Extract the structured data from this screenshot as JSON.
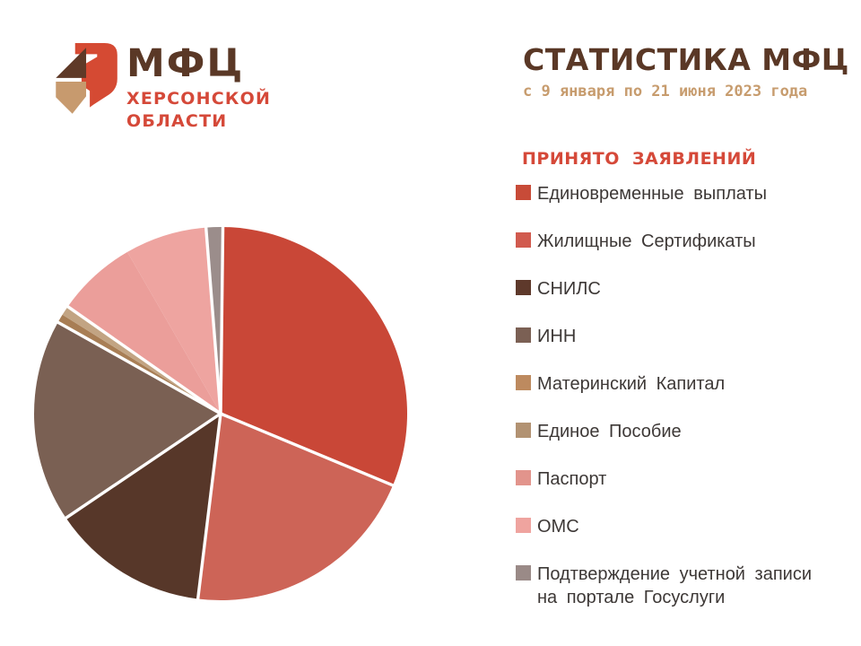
{
  "logo": {
    "name": "МФЦ",
    "region_line1": "ХЕРСОНСКОЙ",
    "region_line2": "ОБЛАСТИ",
    "icon_colors": {
      "red": "#d54a33",
      "brown": "#5f3a28",
      "tan": "#c79a6e"
    }
  },
  "header": {
    "title": "СТАТИСТИКА МФЦ",
    "subtitle": "с 9 января по 21 июня 2023 года"
  },
  "legend": {
    "header": "ПРИНЯТО ЗАЯВЛЕНИЙ",
    "items": [
      {
        "label": "Единовременные выплаты",
        "color": "#c84b38"
      },
      {
        "label": "Жилищные Сертификаты",
        "color": "#d15a4e"
      },
      {
        "label": "СНИЛС",
        "color": "#5e392b"
      },
      {
        "label": "ИНН",
        "color": "#7b6054"
      },
      {
        "label": "Материнский Капитал",
        "color": "#bd8a5f"
      },
      {
        "label": "Единое Пособие",
        "color": "#b29272"
      },
      {
        "label": "Паспорт",
        "color": "#e2948c"
      },
      {
        "label": "ОМС",
        "color": "#efa49f"
      },
      {
        "label": "Подтверждение учетной записи на портале Госуслуги",
        "color": "#9a8a87"
      }
    ]
  },
  "chart_data": {
    "type": "pie",
    "title": "ПРИНЯТО ЗАЯВЛЕНИЙ",
    "subtitle": "с 9 января по 21 июня 2023 года",
    "legend_position": "right",
    "rotation": "clockwise-from-top",
    "slices": [
      {
        "label": "Единовременные выплаты",
        "percent_est": 31.1,
        "color": "#c94737",
        "start_angle": 0.7,
        "end_angle": 112.6
      },
      {
        "label": "Жилищные Сертификаты",
        "percent_est": 20.7,
        "color": "#cd6457",
        "start_angle": 112.6,
        "end_angle": 187.0
      },
      {
        "label": "СНИЛС",
        "percent_est": 13.6,
        "color": "#573729",
        "start_angle": 187.0,
        "end_angle": 236.0
      },
      {
        "label": "ИНН",
        "percent_est": 17.6,
        "color": "#7a6053",
        "start_angle": 236.0,
        "end_angle": 299.3
      },
      {
        "label": "Материнский Капитал",
        "percent_est": 0.8,
        "color": "#a87e55",
        "start_angle": 299.3,
        "end_angle": 302.0
      },
      {
        "label": "Единое Пособие",
        "percent_est": 0.8,
        "color": "#c2a483",
        "start_angle": 302.0,
        "end_angle": 305.0
      },
      {
        "label": "Паспорт",
        "percent_est": 6.9,
        "color": "#eb9e9a",
        "start_angle": 305.0,
        "end_angle": 330.0
      },
      {
        "label": "ОМС",
        "percent_est": 7.1,
        "color": "#eea4a0",
        "start_angle": 330.0,
        "end_angle": 355.5
      },
      {
        "label": "Подтверждение учетной записи на портале Госуслуги",
        "percent_est": 1.4,
        "color": "#9b8d8b",
        "start_angle": 355.5,
        "end_angle": 360.7
      }
    ],
    "divider_angles": [
      0.7,
      112.6,
      187.0,
      236.0,
      299.3,
      305.0,
      355.5
    ],
    "divider_color": "#ffffff"
  },
  "colors": {
    "title_brown": "#5a3826",
    "subtitle_tan": "#c79c6e",
    "accent_red": "#d54939",
    "legend_text": "#3d3836",
    "background": "#ffffff"
  }
}
